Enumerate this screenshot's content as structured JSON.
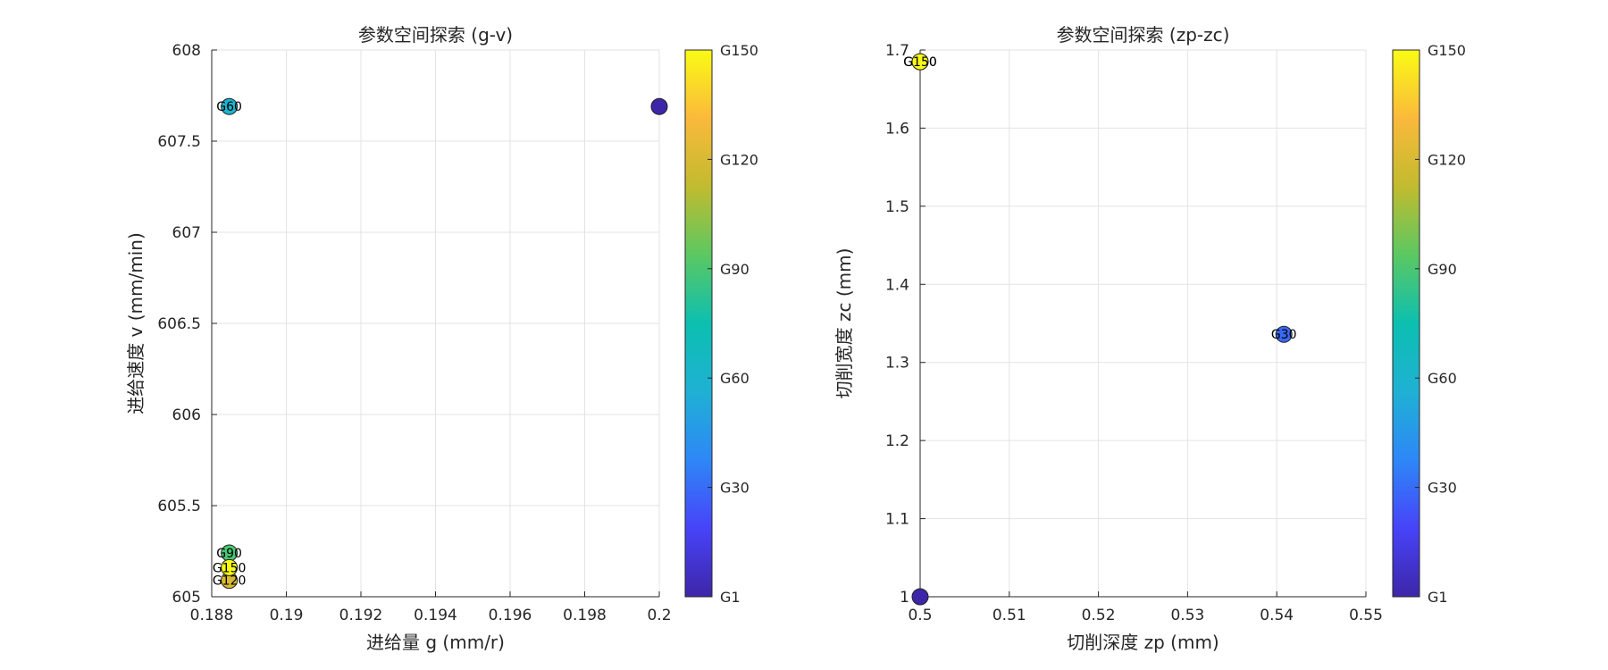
{
  "colormap": [
    "#3e26a8",
    "#4743f8",
    "#2e87f7",
    "#1fb1d4",
    "#0cbfb0",
    "#5bc862",
    "#c1bb2f",
    "#fbb93b",
    "#f9fb15"
  ],
  "chart_data": [
    {
      "type": "scatter",
      "title": "参数空间探索 (g-v)",
      "xlabel": "进给量 g (mm/r)",
      "ylabel": "进给速度 v (mm/min)",
      "xlim": [
        0.188,
        0.2
      ],
      "ylim": [
        605,
        608
      ],
      "xticks": [
        0.188,
        0.19,
        0.192,
        0.194,
        0.196,
        0.198,
        0.2
      ],
      "xtick_labels": [
        "0.188",
        "0.19",
        "0.192",
        "0.194",
        "0.196",
        "0.198",
        "0.2"
      ],
      "yticks": [
        605,
        605.5,
        606,
        606.5,
        607,
        607.5,
        608
      ],
      "ytick_labels": [
        "605",
        "605.5",
        "606",
        "606.5",
        "607",
        "607.5",
        "608"
      ],
      "grid": true,
      "colorbar": {
        "ticks": [
          "G1",
          "G30",
          "G60",
          "G90",
          "G120",
          "G150"
        ],
        "range": [
          1,
          150
        ]
      },
      "points": [
        {
          "x": 0.2,
          "y": 607.69,
          "gen": 1,
          "label": ""
        },
        {
          "x": 0.18847,
          "y": 607.69,
          "gen": 60,
          "label": "G60"
        },
        {
          "x": 0.18847,
          "y": 605.24,
          "gen": 90,
          "label": "G90"
        },
        {
          "x": 0.18847,
          "y": 605.09,
          "gen": 120,
          "label": "G120"
        },
        {
          "x": 0.18847,
          "y": 605.16,
          "gen": 150,
          "label": "G150"
        }
      ]
    },
    {
      "type": "scatter",
      "title": "参数空间探索 (zp-zc)",
      "xlabel": "切削深度 zp (mm)",
      "ylabel": "切削宽度 zc (mm)",
      "xlim": [
        0.5,
        0.55
      ],
      "ylim": [
        1,
        1.7
      ],
      "xticks": [
        0.5,
        0.51,
        0.52,
        0.53,
        0.54,
        0.55
      ],
      "xtick_labels": [
        "0.5",
        "0.51",
        "0.52",
        "0.53",
        "0.54",
        "0.55"
      ],
      "yticks": [
        1,
        1.1,
        1.2,
        1.3,
        1.4,
        1.5,
        1.6,
        1.7
      ],
      "ytick_labels": [
        "1",
        "1.1",
        "1.2",
        "1.3",
        "1.4",
        "1.5",
        "1.6",
        "1.7"
      ],
      "grid": true,
      "colorbar": {
        "ticks": [
          "G1",
          "G30",
          "G60",
          "G90",
          "G120",
          "G150"
        ],
        "range": [
          1,
          150
        ]
      },
      "points": [
        {
          "x": 0.5,
          "y": 1.0,
          "gen": 1,
          "label": ""
        },
        {
          "x": 0.5408,
          "y": 1.336,
          "gen": 30,
          "label": "G30"
        },
        {
          "x": 0.5,
          "y": 1.685,
          "gen": 120,
          "label": "G120"
        },
        {
          "x": 0.5,
          "y": 1.685,
          "gen": 150,
          "label": "G150"
        }
      ]
    }
  ]
}
